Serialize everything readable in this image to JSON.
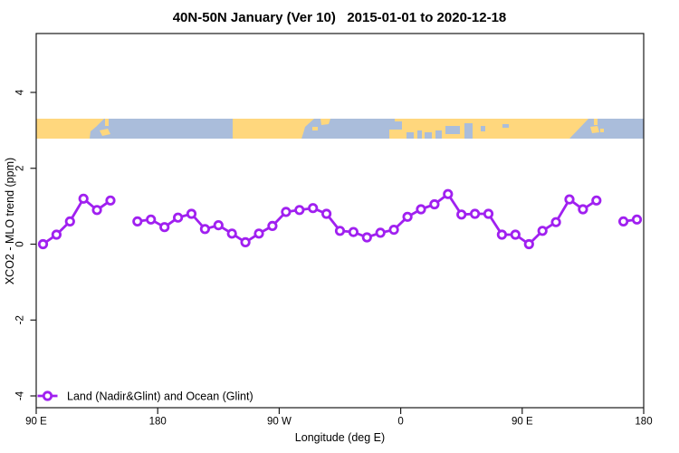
{
  "chart_data": {
    "type": "line",
    "title": "40N-50N January (Ver 10)   2015-01-01 to 2020-12-18",
    "xlabel": "Longitude (deg E)",
    "ylabel": "XCO2 - MLO trend (ppm)",
    "grid": false,
    "legend_position": "bottom-left",
    "x_axis": {
      "range_deg": [
        90,
        540
      ],
      "ticks": [
        {
          "deg": 90,
          "label": "90 E"
        },
        {
          "deg": 180,
          "label": "180"
        },
        {
          "deg": 270,
          "label": "90 W"
        },
        {
          "deg": 360,
          "label": "0"
        },
        {
          "deg": 450,
          "label": "90 E"
        },
        {
          "deg": 540,
          "label": "180"
        }
      ]
    },
    "y_axis": {
      "range": [
        -4.3,
        5.55
      ],
      "ticks": [
        4,
        2,
        0,
        -2,
        -4
      ]
    },
    "series": [
      {
        "name": "Land (Nadir&Glint) and Ocean (Glint)",
        "color": "#A020F0",
        "marker": "open-circle",
        "x_deg": [
          95,
          105,
          115,
          125,
          135,
          145,
          155,
          165,
          175,
          185,
          195,
          205,
          215,
          225,
          235,
          245,
          255,
          265,
          275,
          285,
          295,
          305,
          315,
          325,
          335,
          345,
          355,
          365,
          375,
          385,
          395,
          405,
          415,
          425,
          435,
          445,
          455,
          465,
          475,
          485,
          495,
          505,
          515,
          525,
          535
        ],
        "values": [
          0.0,
          0.25,
          0.6,
          1.2,
          0.9,
          1.15,
          null,
          0.6,
          0.65,
          0.45,
          0.7,
          0.8,
          0.4,
          0.5,
          0.28,
          0.05,
          0.28,
          0.48,
          0.85,
          0.9,
          0.95,
          0.8,
          0.35,
          0.32,
          0.18,
          0.3,
          0.38,
          0.72,
          0.92,
          1.05,
          1.32,
          0.78,
          0.8,
          0.8,
          0.25,
          0.25,
          0.0,
          0.35,
          0.58,
          1.18,
          0.92,
          1.15,
          null,
          0.6,
          0.65
        ]
      }
    ],
    "map_strip": {
      "ppm_top": 3.3,
      "ppm_bottom": 2.75,
      "land_color": "#FFD77D",
      "ocean_color": "#AABDDB"
    }
  }
}
